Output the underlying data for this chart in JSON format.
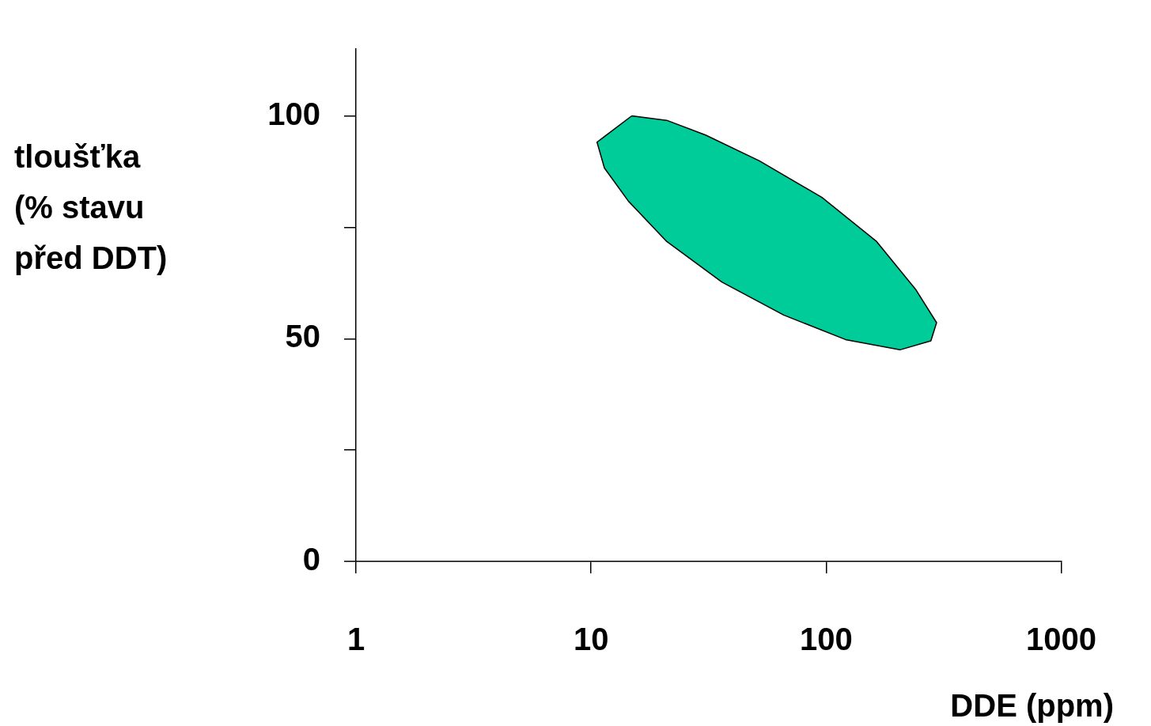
{
  "chart_data": {
    "type": "area",
    "xlabel": "DDE (ppm)",
    "ylabel": "tloušťka\n(% stavu\npřed DDT)",
    "log": "x",
    "xlim": [
      1,
      1000
    ],
    "xticks": [
      1,
      10,
      100,
      1000
    ],
    "ylim": [
      0,
      115
    ],
    "yticks": [
      0,
      {
        "value": 25,
        "label": null
      },
      50,
      {
        "value": 75,
        "label": null
      },
      100
    ],
    "grid": false,
    "legend": false,
    "marker": "none",
    "series": [
      {
        "color": "#00cc99",
        "x": [
          14.9,
          21,
          30.7,
          52,
          96,
          164,
          240,
          295,
          279,
          206,
          121,
          66,
          36,
          21,
          14.4,
          11.4,
          10.6,
          14.9
        ],
        "values": [
          100,
          99,
          95.7,
          89.9,
          81.7,
          71.8,
          61.1,
          53.6,
          49.5,
          47.5,
          49.8,
          55.3,
          62.7,
          71.8,
          80.9,
          88.3,
          94.1,
          100
        ]
      }
    ]
  }
}
